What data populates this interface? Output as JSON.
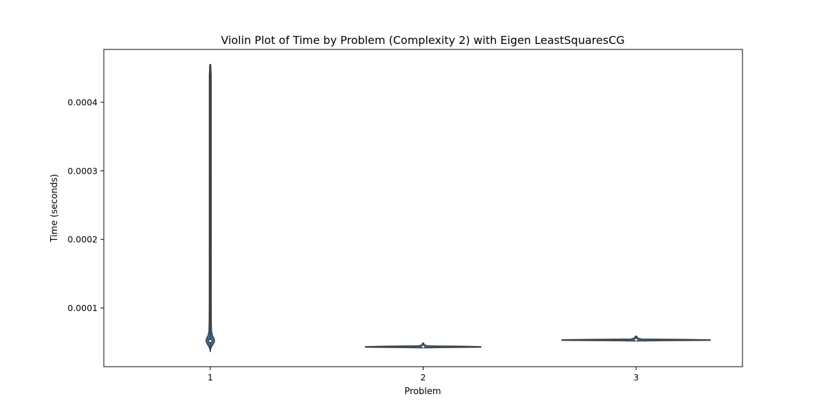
{
  "chart_data": {
    "type": "violin",
    "title": "Violin Plot of Time by Problem (Complexity 2) with Eigen LeastSquaresCG",
    "xlabel": "Problem",
    "ylabel": "Time (seconds)",
    "categories": [
      "1",
      "2",
      "3"
    ],
    "ylim": [
      1.45e-05,
      0.000477
    ],
    "yticks": [
      0.0001,
      0.0002,
      0.0003,
      0.0004
    ],
    "ytick_labels": [
      "0.0001",
      "0.0002",
      "0.0003",
      "0.0004"
    ],
    "violin_color": "#3274a1",
    "grid": false,
    "violins": [
      {
        "category": "1",
        "min": 3.65e-05,
        "q1": 4.92e-05,
        "median": 5.2e-05,
        "q3": 5.48e-05,
        "max": 0.000455,
        "profile": [
          [
            3.65e-05,
            0.0
          ],
          [
            4e-05,
            0.45
          ],
          [
            4.4e-05,
            2.0
          ],
          [
            4.8e-05,
            4.6
          ],
          [
            5.2e-05,
            6.2
          ],
          [
            5.6e-05,
            5.2
          ],
          [
            6e-05,
            3.2
          ],
          [
            6.6e-05,
            1.9
          ],
          [
            7.6e-05,
            1.55
          ],
          [
            0.0001,
            1.4
          ],
          [
            0.00015,
            1.35
          ],
          [
            0.0003,
            1.3
          ],
          [
            0.00044,
            1.3
          ],
          [
            0.000455,
            0.6
          ]
        ]
      },
      {
        "category": "2",
        "min": 4.2e-05,
        "q1": 4.3e-05,
        "median": 4.36e-05,
        "q3": 4.42e-05,
        "max": 4.9e-05,
        "profile": [
          [
            4.2e-05,
            0.0
          ],
          [
            4.25e-05,
            30.0
          ],
          [
            4.3e-05,
            84.0
          ],
          [
            4.36e-05,
            84.0
          ],
          [
            4.42e-05,
            60.0
          ],
          [
            4.48e-05,
            8.0
          ],
          [
            4.6e-05,
            2.0
          ],
          [
            4.9e-05,
            0.6
          ]
        ]
      },
      {
        "category": "3",
        "min": 5.2e-05,
        "q1": 5.3e-05,
        "median": 5.35e-05,
        "q3": 5.4e-05,
        "max": 5.9e-05,
        "profile": [
          [
            5.2e-05,
            0.0
          ],
          [
            5.25e-05,
            40.0
          ],
          [
            5.3e-05,
            108.0
          ],
          [
            5.36e-05,
            108.0
          ],
          [
            5.41e-05,
            80.0
          ],
          [
            5.48e-05,
            8.0
          ],
          [
            5.6e-05,
            2.5
          ],
          [
            5.9e-05,
            0.8
          ]
        ]
      }
    ]
  }
}
